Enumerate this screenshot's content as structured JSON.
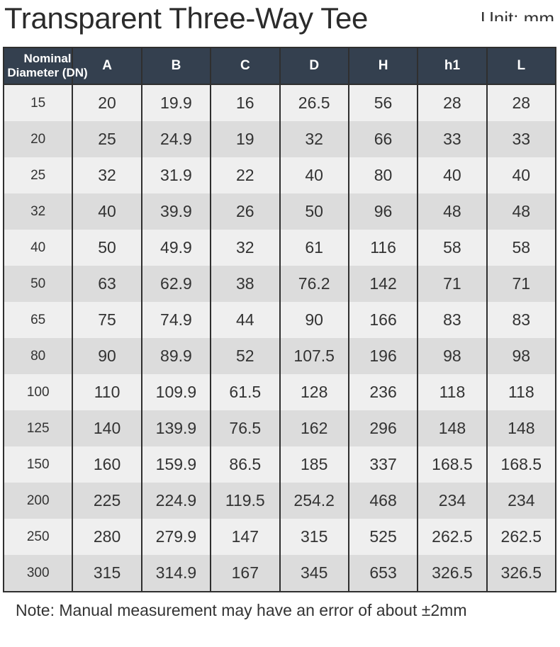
{
  "header": {
    "title": "Transparent Three-Way Tee",
    "unit": "Unit: mm"
  },
  "table": {
    "columns": [
      "Nominal Diameter (DN)",
      "A",
      "B",
      "C",
      "D",
      "H",
      "h1",
      "L"
    ],
    "rows": [
      [
        "15",
        "20",
        "19.9",
        "16",
        "26.5",
        "56",
        "28",
        "28"
      ],
      [
        "20",
        "25",
        "24.9",
        "19",
        "32",
        "66",
        "33",
        "33"
      ],
      [
        "25",
        "32",
        "31.9",
        "22",
        "40",
        "80",
        "40",
        "40"
      ],
      [
        "32",
        "40",
        "39.9",
        "26",
        "50",
        "96",
        "48",
        "48"
      ],
      [
        "40",
        "50",
        "49.9",
        "32",
        "61",
        "116",
        "58",
        "58"
      ],
      [
        "50",
        "63",
        "62.9",
        "38",
        "76.2",
        "142",
        "71",
        "71"
      ],
      [
        "65",
        "75",
        "74.9",
        "44",
        "90",
        "166",
        "83",
        "83"
      ],
      [
        "80",
        "90",
        "89.9",
        "52",
        "107.5",
        "196",
        "98",
        "98"
      ],
      [
        "100",
        "110",
        "109.9",
        "61.5",
        "128",
        "236",
        "118",
        "118"
      ],
      [
        "125",
        "140",
        "139.9",
        "76.5",
        "162",
        "296",
        "148",
        "148"
      ],
      [
        "150",
        "160",
        "159.9",
        "86.5",
        "185",
        "337",
        "168.5",
        "168.5"
      ],
      [
        "200",
        "225",
        "224.9",
        "119.5",
        "254.2",
        "468",
        "234",
        "234"
      ],
      [
        "250",
        "280",
        "279.9",
        "147",
        "315",
        "525",
        "262.5",
        "262.5"
      ],
      [
        "300",
        "315",
        "314.9",
        "167",
        "345",
        "653",
        "326.5",
        "326.5"
      ]
    ]
  },
  "note": "Note: Manual measurement may have an error of about ±2mm"
}
